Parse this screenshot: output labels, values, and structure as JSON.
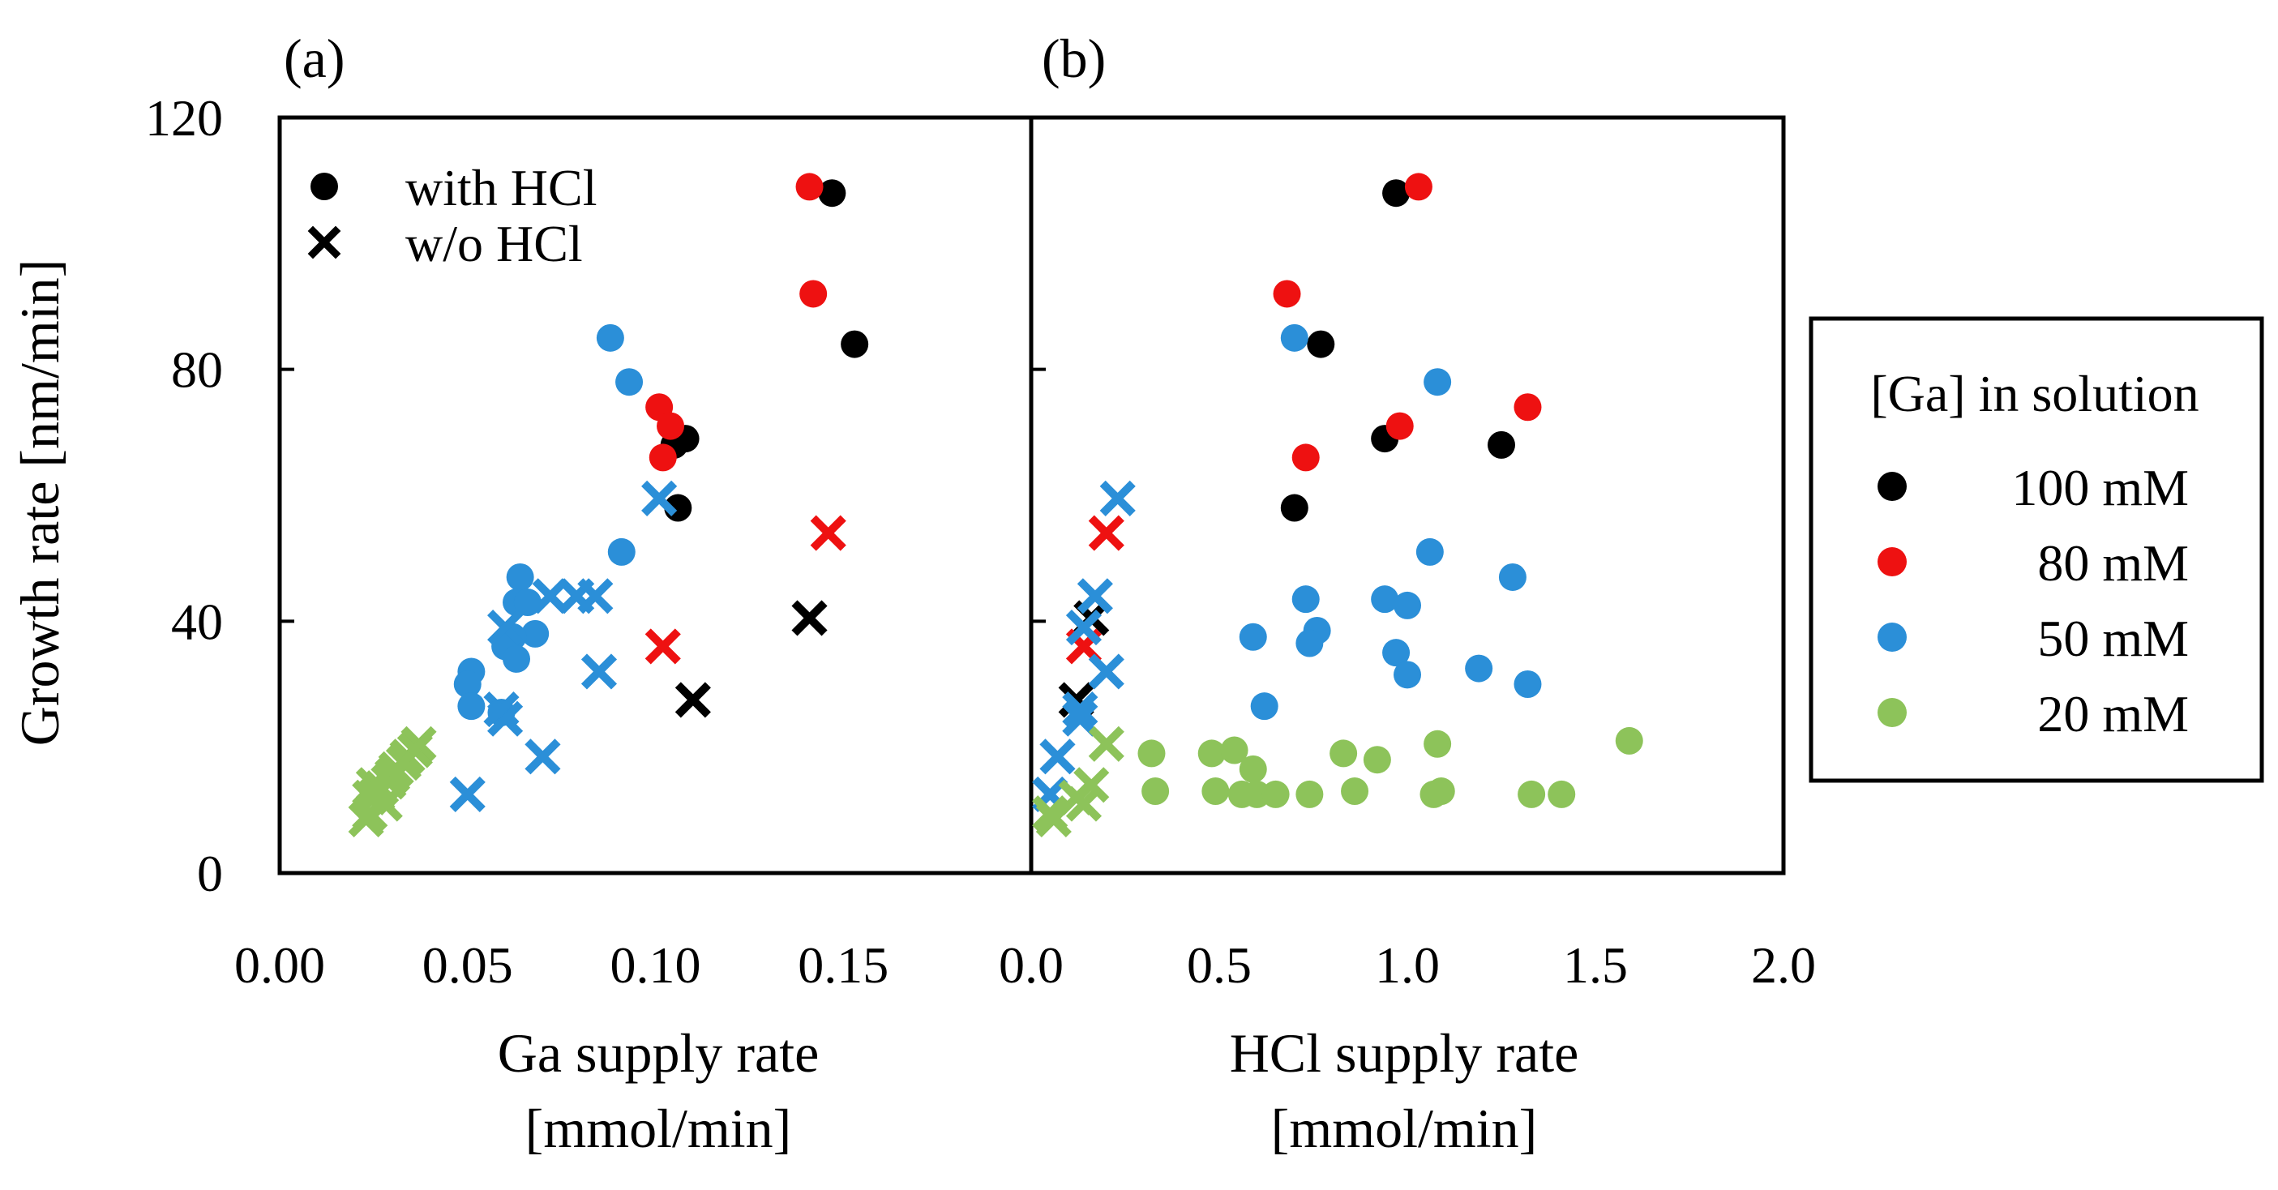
{
  "chart_data": [
    {
      "panel_label": "(a)",
      "type": "scatter",
      "xlabel_line1": "Ga supply rate",
      "xlabel_line2": "[mmol/min]",
      "ylabel": "Growth rate [nm/min]",
      "xlim": [
        0.0,
        0.2
      ],
      "ylim": [
        0,
        120
      ],
      "x_ticks": [
        "0.00",
        "0.05",
        "0.10",
        "0.15"
      ],
      "x_tick_values": [
        0.0,
        0.05,
        0.1,
        0.15
      ],
      "y_ticks": [
        "0",
        "40",
        "80",
        "120"
      ],
      "y_tick_values": [
        0,
        40,
        80,
        120
      ],
      "series": [
        {
          "name": "100 mM",
          "color": "#000000",
          "with_hcl": [
            [
              0.147,
              108
            ],
            [
              0.153,
              84
            ],
            [
              0.108,
              69
            ],
            [
              0.105,
              68
            ],
            [
              0.106,
              58
            ]
          ],
          "without_hcl": [
            [
              0.141,
              40.5
            ],
            [
              0.11,
              27.5
            ]
          ]
        },
        {
          "name": "80 mM",
          "color": "#ee1111",
          "with_hcl": [
            [
              0.141,
              109
            ],
            [
              0.142,
              92
            ],
            [
              0.101,
              74
            ],
            [
              0.104,
              71
            ],
            [
              0.102,
              66
            ]
          ],
          "without_hcl": [
            [
              0.146,
              54
            ],
            [
              0.102,
              36
            ]
          ]
        },
        {
          "name": "50 mM",
          "color": "#2b8fd8",
          "with_hcl": [
            [
              0.088,
              85
            ],
            [
              0.093,
              78
            ],
            [
              0.091,
              51
            ],
            [
              0.064,
              47
            ],
            [
              0.063,
              43
            ],
            [
              0.066,
              43
            ],
            [
              0.068,
              38
            ],
            [
              0.062,
              37.5
            ],
            [
              0.06,
              36
            ],
            [
              0.063,
              34
            ],
            [
              0.051,
              32
            ],
            [
              0.05,
              30
            ],
            [
              0.051,
              26.5
            ],
            [
              0.059,
              25.5
            ]
          ],
          "without_hcl": [
            [
              0.101,
              59.5
            ],
            [
              0.072,
              44
            ],
            [
              0.079,
              44
            ],
            [
              0.084,
              44
            ],
            [
              0.06,
              39
            ],
            [
              0.085,
              32
            ],
            [
              0.059,
              26
            ],
            [
              0.06,
              24.5
            ],
            [
              0.07,
              18.5
            ],
            [
              0.05,
              12.5
            ]
          ]
        },
        {
          "name": "20 mM",
          "color": "#8dc35a",
          "with_hcl": [],
          "without_hcl": [
            [
              0.037,
              20.5
            ],
            [
              0.036,
              19.5
            ],
            [
              0.034,
              18.5
            ],
            [
              0.033,
              17.5
            ],
            [
              0.031,
              16.5
            ],
            [
              0.03,
              15.5
            ],
            [
              0.029,
              14.5
            ],
            [
              0.027,
              13.5
            ],
            [
              0.025,
              14
            ],
            [
              0.026,
              12.5
            ],
            [
              0.028,
              11
            ],
            [
              0.024,
              12
            ],
            [
              0.024,
              9.5
            ],
            [
              0.023,
              8.5
            ]
          ]
        }
      ]
    },
    {
      "panel_label": "(b)",
      "type": "scatter",
      "xlabel_line1": "HCl supply rate",
      "xlabel_line2": "[mmol/min]",
      "xlim": [
        0.0,
        2.0
      ],
      "ylim": [
        0,
        120
      ],
      "x_ticks": [
        "0.0",
        "0.5",
        "1.0",
        "1.5",
        "2.0"
      ],
      "x_tick_values": [
        0.0,
        0.5,
        1.0,
        1.5,
        2.0
      ],
      "series": [
        {
          "name": "100 mM",
          "color": "#000000",
          "with_hcl": [
            [
              0.97,
              108
            ],
            [
              0.77,
              84
            ],
            [
              0.94,
              69
            ],
            [
              1.25,
              68
            ],
            [
              0.7,
              58
            ]
          ],
          "without_hcl": [
            [
              0.16,
              40.5
            ],
            [
              0.12,
              27.5
            ]
          ]
        },
        {
          "name": "80 mM",
          "color": "#ee1111",
          "with_hcl": [
            [
              1.03,
              109
            ],
            [
              0.68,
              92
            ],
            [
              1.32,
              74
            ],
            [
              0.98,
              71
            ],
            [
              0.73,
              66
            ]
          ],
          "without_hcl": [
            [
              0.2,
              54
            ],
            [
              0.14,
              36
            ]
          ]
        },
        {
          "name": "50 mM",
          "color": "#2b8fd8",
          "with_hcl": [
            [
              0.7,
              85
            ],
            [
              1.08,
              78
            ],
            [
              1.06,
              51
            ],
            [
              1.28,
              47
            ],
            [
              0.73,
              43.5
            ],
            [
              0.94,
              43.5
            ],
            [
              1.0,
              42.5
            ],
            [
              0.76,
              38.5
            ],
            [
              0.59,
              37.5
            ],
            [
              0.74,
              36.5
            ],
            [
              0.97,
              35
            ],
            [
              1.19,
              32.5
            ],
            [
              1.0,
              31.5
            ],
            [
              1.32,
              30
            ],
            [
              0.62,
              26.5
            ]
          ],
          "without_hcl": [
            [
              0.23,
              59.5
            ],
            [
              0.17,
              44
            ],
            [
              0.14,
              39
            ],
            [
              0.2,
              32
            ],
            [
              0.13,
              26
            ],
            [
              0.13,
              24.5
            ],
            [
              0.07,
              18.5
            ],
            [
              0.05,
              12.5
            ]
          ]
        },
        {
          "name": "20 mM",
          "color": "#8dc35a",
          "with_hcl": [
            [
              1.59,
              21
            ],
            [
              1.08,
              20.5
            ],
            [
              0.32,
              19
            ],
            [
              0.48,
              19
            ],
            [
              0.54,
              19.5
            ],
            [
              0.83,
              19
            ],
            [
              0.92,
              18
            ],
            [
              0.59,
              16.5
            ],
            [
              0.33,
              13
            ],
            [
              0.49,
              13
            ],
            [
              0.56,
              12.5
            ],
            [
              0.6,
              12.5
            ],
            [
              0.65,
              12.5
            ],
            [
              0.74,
              12.5
            ],
            [
              0.86,
              13
            ],
            [
              1.07,
              12.5
            ],
            [
              1.09,
              13
            ],
            [
              1.33,
              12.5
            ],
            [
              1.41,
              12.5
            ]
          ],
          "without_hcl": [
            [
              0.2,
              20.5
            ],
            [
              0.16,
              14
            ],
            [
              0.12,
              12
            ],
            [
              0.14,
              11
            ],
            [
              0.05,
              9.5
            ],
            [
              0.06,
              8.5
            ]
          ]
        }
      ]
    }
  ],
  "marker_legend": {
    "items": [
      {
        "label": "with HCl",
        "marker": "circle"
      },
      {
        "label": "w/o HCl",
        "marker": "cross"
      }
    ]
  },
  "color_legend": {
    "title": "[Ga] in solution",
    "items": [
      {
        "label": "100 mM",
        "color": "#000000"
      },
      {
        "label": "80 mM",
        "color": "#ee1111"
      },
      {
        "label": "50 mM",
        "color": "#2b8fd8"
      },
      {
        "label": "20 mM",
        "color": "#8dc35a"
      }
    ]
  }
}
